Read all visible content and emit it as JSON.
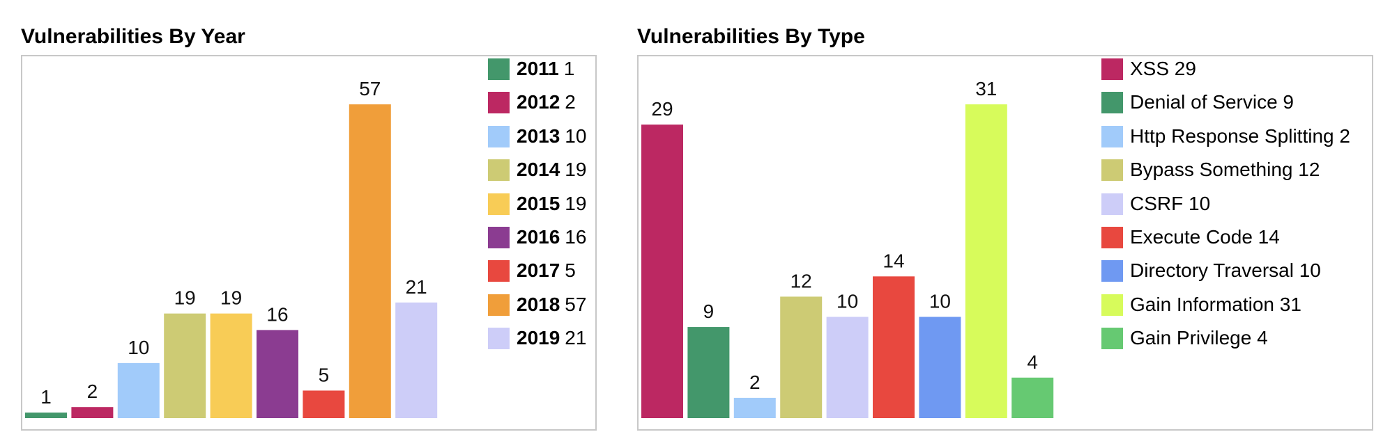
{
  "chart_data": [
    {
      "type": "bar",
      "title": "Vulnerabilities By Year",
      "categories": [
        "2011",
        "2012",
        "2013",
        "2014",
        "2015",
        "2016",
        "2017",
        "2018",
        "2019"
      ],
      "values": [
        1,
        2,
        10,
        19,
        19,
        16,
        5,
        57,
        21
      ],
      "colors": [
        "#43976b",
        "#bc2862",
        "#a1cbfa",
        "#cdcb74",
        "#f8cc56",
        "#8b3c91",
        "#e8483f",
        "#f09e3a",
        "#cdcdf8"
      ],
      "ylim": [
        0,
        57
      ],
      "grid": false,
      "legend_placement": "right",
      "legend": [
        {
          "name": "2011",
          "value": "1"
        },
        {
          "name": "2012",
          "value": "2"
        },
        {
          "name": "2013",
          "value": "10"
        },
        {
          "name": "2014",
          "value": "19"
        },
        {
          "name": "2015",
          "value": "19"
        },
        {
          "name": "2016",
          "value": "16"
        },
        {
          "name": "2017",
          "value": "5"
        },
        {
          "name": "2018",
          "value": "57"
        },
        {
          "name": "2019",
          "value": "21"
        }
      ]
    },
    {
      "type": "bar",
      "title": "Vulnerabilities By Type",
      "categories": [
        "XSS",
        "Denial of Service",
        "Http Response Splitting",
        "Bypass Something",
        "CSRF",
        "Execute Code",
        "Directory Traversal",
        "Gain Information",
        "Gain Privilege"
      ],
      "values": [
        29,
        9,
        2,
        12,
        10,
        14,
        10,
        31,
        4
      ],
      "colors": [
        "#bc2862",
        "#43976b",
        "#a1cbfa",
        "#cdcb74",
        "#cdcdf8",
        "#e8483f",
        "#6f99f2",
        "#d7fb5b",
        "#66c972"
      ],
      "ylim": [
        0,
        31
      ],
      "grid": false,
      "legend_placement": "right",
      "legend": [
        {
          "name": "XSS",
          "value": "29"
        },
        {
          "name": "Denial of Service",
          "value": "9"
        },
        {
          "name": "Http Response Splitting",
          "value": "2"
        },
        {
          "name": "Bypass Something",
          "value": "12"
        },
        {
          "name": "CSRF",
          "value": "10"
        },
        {
          "name": "Execute Code",
          "value": "14"
        },
        {
          "name": "Directory Traversal",
          "value": "10"
        },
        {
          "name": "Gain Information",
          "value": "31"
        },
        {
          "name": "Gain Privilege",
          "value": "4"
        }
      ]
    }
  ]
}
